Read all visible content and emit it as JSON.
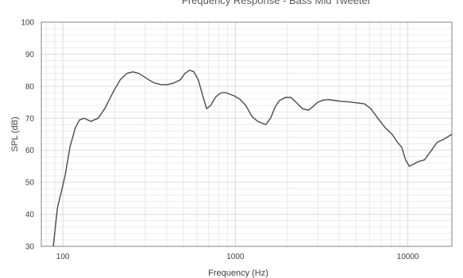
{
  "chart_data": {
    "type": "line",
    "title": "Frequency Response - Bass Mid Tweeter",
    "xlabel": "Frequency (Hz)",
    "ylabel": "SPL (dB)",
    "x_scale": "log",
    "xlim": [
      75,
      18000
    ],
    "ylim": [
      30,
      100
    ],
    "x_ticks": [
      100,
      1000,
      10000
    ],
    "x_tick_labels": [
      "100",
      "1000",
      "10000"
    ],
    "y_ticks": [
      30,
      40,
      50,
      60,
      70,
      80,
      90,
      100
    ],
    "y_tick_labels": [
      "30",
      "40",
      "50",
      "60",
      "70",
      "80",
      "90",
      "100"
    ],
    "grid": true,
    "legend": "none",
    "colors": {
      "line": "#4a4a4a",
      "grid": "#d9d9d9",
      "axis": "#808080"
    },
    "series": [
      {
        "x": [
          88,
          93,
          98,
          103,
          110,
          118,
          125,
          133,
          145,
          160,
          175,
          195,
          215,
          235,
          255,
          275,
          295,
          315,
          340,
          370,
          405,
          440,
          480,
          510,
          545,
          575,
          610,
          640,
          680,
          720,
          765,
          800,
          840,
          880,
          930,
          985,
          1060,
          1150,
          1250,
          1350,
          1500,
          1600,
          1700,
          1800,
          1950,
          2100,
          2250,
          2450,
          2650,
          2800,
          3000,
          3250,
          3500,
          3800,
          4100,
          4400,
          4700,
          5100,
          5600,
          6100,
          6700,
          7400,
          8100,
          8700,
          9200,
          9700,
          10200,
          10700,
          11500,
          12500,
          13500,
          14800,
          16200,
          18000
        ],
        "y": [
          30,
          42,
          47,
          52,
          61,
          67,
          69.5,
          70,
          69,
          70,
          73,
          78,
          82,
          84,
          84.5,
          84,
          83,
          82,
          81,
          80.5,
          80.5,
          81,
          82,
          84,
          85,
          84.5,
          82,
          78,
          73,
          74,
          76.5,
          77.5,
          78,
          78,
          77.5,
          77,
          76,
          74,
          70.5,
          69,
          68,
          70,
          73.5,
          75.5,
          76.5,
          76.5,
          75,
          73,
          72.5,
          73.5,
          75,
          75.7,
          75.8,
          75.5,
          75.3,
          75.2,
          75,
          74.8,
          74.5,
          73,
          70,
          67,
          65,
          62.5,
          61,
          57,
          55,
          55.5,
          56.5,
          57,
          59.5,
          62.5,
          63.5,
          65
        ]
      }
    ]
  }
}
